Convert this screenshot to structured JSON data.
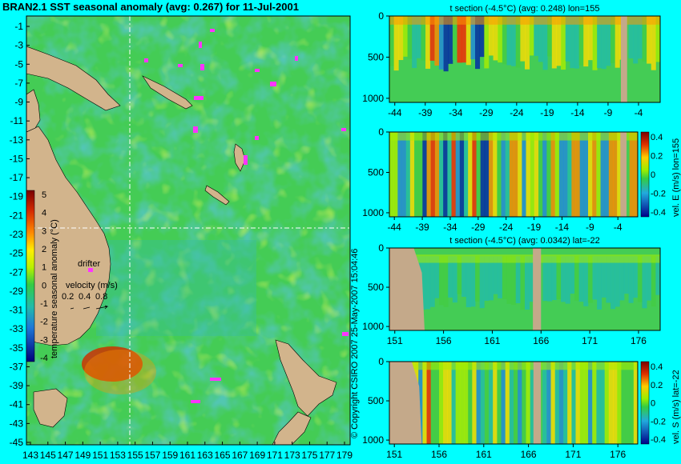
{
  "title": "BRAN2.1 SST seasonal anomaly (avg: 0.267) for 11-Jul-2001",
  "copyright": "© Copyright CSIRO 2007 25-May-2007 15:04:46",
  "colors": {
    "background": "#00ffff",
    "land": "#d2b48c",
    "ocean_base": "#44cc55",
    "crosshair": "#ffffff",
    "drifter": "#ff33ff"
  },
  "map": {
    "lat_ticks": [
      "-1",
      "-3",
      "-5",
      "-7",
      "-9",
      "-11",
      "-13",
      "-15",
      "-17",
      "-19",
      "-21",
      "-23",
      "-25",
      "-27",
      "-29",
      "-31",
      "-33",
      "-35",
      "-37",
      "-39",
      "-41",
      "-43",
      "-45"
    ],
    "lon_ticks": [
      "143",
      "145",
      "147",
      "149",
      "151",
      "153",
      "155",
      "157",
      "159",
      "161",
      "163",
      "165",
      "167",
      "169",
      "171",
      "173",
      "175",
      "177",
      "179"
    ],
    "legend_drifter": "drifter",
    "legend_velocity": "velocity (m/s)",
    "velocity_values": [
      "0.2",
      "0.4",
      "0.8"
    ],
    "colorbar_label": "temperature seasonal anomaly (°C)",
    "colorbar_ticks": [
      "5",
      "4",
      "3",
      "2",
      "1",
      "0",
      "-1",
      "-2",
      "-3",
      "-4"
    ],
    "crosshair_lon": 155,
    "crosshair_lat": -22
  },
  "chart_data": [
    {
      "type": "heatmap",
      "title": "t section (-4.5°C) (avg: 0.248) lon=155",
      "x_ticks": [
        "-44",
        "-39",
        "-34",
        "-29",
        "-24",
        "-19",
        "-14",
        "-9",
        "-4"
      ],
      "y_ticks": [
        "0",
        "500",
        "1000"
      ],
      "ylim": [
        1050,
        0
      ]
    },
    {
      "type": "heatmap",
      "title": "",
      "x_ticks": [
        "-44",
        "-39",
        "-34",
        "-29",
        "-24",
        "-19",
        "-14",
        "-9",
        "-4"
      ],
      "y_ticks": [
        "0",
        "500",
        "1000"
      ],
      "ylim": [
        1050,
        0
      ],
      "colorbar_label": "vel. E (m/s) lon=155",
      "colorbar_ticks": [
        "0.4",
        "0.2",
        "0",
        "-0.2",
        "-0.4"
      ]
    },
    {
      "type": "heatmap",
      "title": "t section (-4.5°C) (avg: 0.0342) lat=-22",
      "x_ticks": [
        "151",
        "156",
        "161",
        "166",
        "171",
        "176"
      ],
      "y_ticks": [
        "0",
        "500",
        "1000"
      ],
      "ylim": [
        1050,
        0
      ]
    },
    {
      "type": "heatmap",
      "title": "",
      "x_ticks": [
        "151",
        "156",
        "161",
        "166",
        "171",
        "176"
      ],
      "y_ticks": [
        "0",
        "500",
        "1000"
      ],
      "ylim": [
        1050,
        0
      ],
      "colorbar_label": "vel. S (m/s) lat=-22",
      "colorbar_ticks": [
        "0.4",
        "0.2",
        "0",
        "-0.2",
        "-0.4"
      ]
    }
  ]
}
